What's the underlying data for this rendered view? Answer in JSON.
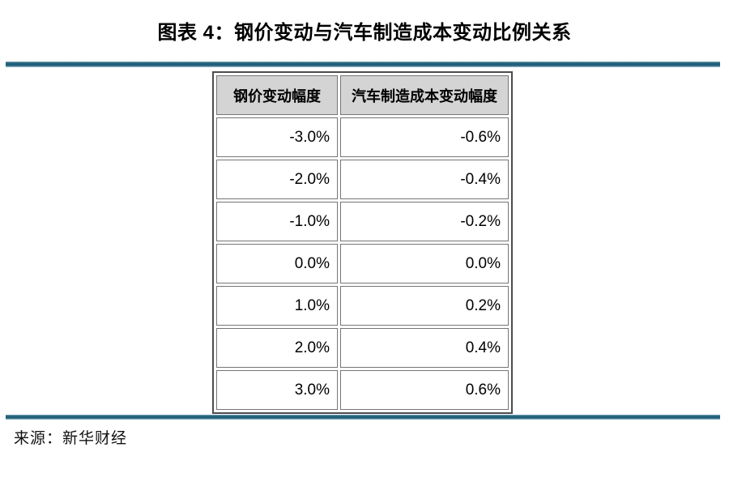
{
  "page": {
    "title": "图表 4：钢价变动与汽车制造成本变动比例关系",
    "source": "来源：新华财经"
  },
  "chart_data": {
    "type": "table",
    "title": "图表 4：钢价变动与汽车制造成本变动比例关系",
    "columns": [
      "钢价变动幅度",
      "汽车制造成本变动幅度"
    ],
    "rows": [
      [
        "-3.0%",
        "-0.6%"
      ],
      [
        "-2.0%",
        "-0.4%"
      ],
      [
        "-1.0%",
        "-0.2%"
      ],
      [
        "0.0%",
        "0.0%"
      ],
      [
        "1.0%",
        "0.2%"
      ],
      [
        "2.0%",
        "0.4%"
      ],
      [
        "3.0%",
        "0.6%"
      ]
    ],
    "source": "来源：新华财经",
    "layout": {
      "header_alignment": "center",
      "value_alignment": "right",
      "grid": "all-cell-borders-with-spacing"
    }
  },
  "colors": {
    "rule_teal": "#21607b",
    "rule_teal_light": "#a9c8d3",
    "rule_teal_mid": "#7fa8b8",
    "header_bg": "#d4d4d4",
    "border_gray": "#757575",
    "outer_border": "#4d4d4d",
    "text_color": "#000000"
  }
}
